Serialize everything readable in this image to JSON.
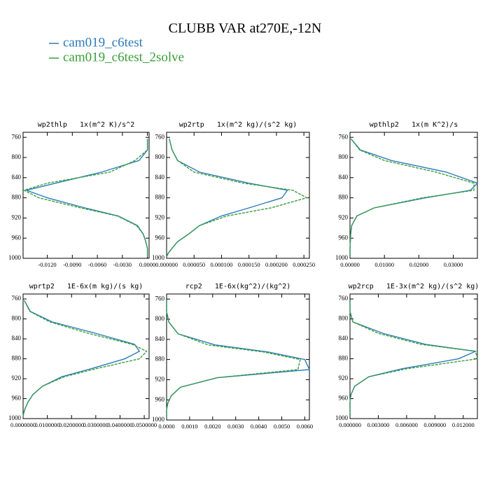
{
  "title": "CLUBB VAR at270E,-12N",
  "legend": [
    {
      "name": "cam019_c6test",
      "color": "#2b7bba"
    },
    {
      "name": "cam019_c6test_2solve",
      "color": "#3a9e3a"
    }
  ],
  "chart_data": [
    {
      "type": "line",
      "title": "wp2thlp   1x(m^2 K)/s^2",
      "y": [
        763,
        785,
        806,
        829,
        851,
        865,
        880,
        900,
        916,
        935,
        952,
        967,
        980,
        990,
        997
      ],
      "ylim": [
        1000,
        750
      ],
      "yticks": [
        760,
        800,
        840,
        880,
        920,
        960,
        1000
      ],
      "xlim": [
        -0.0149,
        0.0002
      ],
      "xticks": [
        {
          "value": -0.012,
          "label": "-0.0120"
        },
        {
          "value": -0.009,
          "label": "-0.0090"
        },
        {
          "value": -0.006,
          "label": "-0.0060"
        },
        {
          "value": -0.003,
          "label": "-0.0030"
        },
        {
          "value": 0,
          "label": "0.0000"
        }
      ],
      "series": [
        {
          "color": "#2b7bba",
          "dashed": false,
          "values": [
            0,
            0,
            -0.001,
            -0.0055,
            -0.011,
            -0.0145,
            -0.012,
            -0.0075,
            -0.0035,
            -0.0012,
            -0.0005,
            -0.0002,
            0,
            0,
            0
          ]
        },
        {
          "color": "#3a9e3a",
          "dashed": true,
          "values": [
            0,
            0,
            -0.0015,
            -0.0045,
            -0.012,
            -0.0148,
            -0.013,
            -0.008,
            -0.0036,
            -0.0013,
            -0.0005,
            -0.0002,
            0,
            0,
            0
          ]
        }
      ]
    },
    {
      "type": "line",
      "title": "wp2rtp   1x(m^2 kg)/(s^2 kg)",
      "y": [
        763,
        785,
        806,
        829,
        851,
        865,
        880,
        900,
        916,
        935,
        952,
        967,
        980,
        990,
        997
      ],
      "ylim": [
        1000,
        750
      ],
      "yticks": [
        760,
        800,
        840,
        880,
        920,
        960,
        1000
      ],
      "xlim": [
        0,
        0.00026
      ],
      "xticks": [
        {
          "value": 0,
          "label": "0.000000"
        },
        {
          "value": 5e-05,
          "label": "0.000050"
        },
        {
          "value": 0.0001,
          "label": "0.000100"
        },
        {
          "value": 0.00015,
          "label": "0.000150"
        },
        {
          "value": 0.0002,
          "label": "0.000200"
        },
        {
          "value": 0.00025,
          "label": "0.000250"
        }
      ],
      "series": [
        {
          "color": "#2b7bba",
          "dashed": false,
          "values": [
            5e-06,
            1e-05,
            2e-05,
            6e-05,
            0.00015,
            0.00022,
            0.00021,
            0.00015,
            0.0001,
            6e-05,
            4e-05,
            2e-05,
            1e-05,
            3e-06,
            0
          ]
        },
        {
          "color": "#3a9e3a",
          "dashed": true,
          "values": [
            5e-06,
            1e-05,
            2e-05,
            5e-05,
            0.00014,
            0.00023,
            0.000255,
            0.00019,
            0.00011,
            6e-05,
            4e-05,
            2e-05,
            1e-05,
            3e-06,
            0
          ]
        }
      ]
    },
    {
      "type": "line",
      "title": "wpthlp2   1x(m K^2)/s",
      "y": [
        763,
        785,
        806,
        829,
        851,
        865,
        880,
        900,
        916,
        935,
        952,
        967,
        980,
        990,
        997
      ],
      "ylim": [
        1000,
        750
      ],
      "yticks": [
        760,
        800,
        840,
        880,
        920,
        960,
        1000
      ],
      "xlim": [
        0,
        0.037
      ],
      "xticks": [
        {
          "value": 0,
          "label": "0.00000"
        },
        {
          "value": 0.01,
          "label": "0.01000"
        },
        {
          "value": 0.02,
          "label": "0.02000"
        },
        {
          "value": 0.03,
          "label": "0.03000"
        }
      ],
      "series": [
        {
          "color": "#2b7bba",
          "dashed": false,
          "values": [
            0.0003,
            0.003,
            0.012,
            0.028,
            0.037,
            0.035,
            0.022,
            0.007,
            0.002,
            0.0005,
            0.0002,
            0.0001,
            0,
            0,
            0
          ]
        },
        {
          "color": "#3a9e3a",
          "dashed": true,
          "values": [
            0.0003,
            0.0028,
            0.01,
            0.025,
            0.036,
            0.036,
            0.021,
            0.007,
            0.002,
            0.0005,
            0.0002,
            0.0001,
            0,
            0,
            0
          ]
        }
      ]
    },
    {
      "type": "line",
      "title": "wprtp2   1E-6x(m kg)/(s kg)",
      "y": [
        763,
        785,
        806,
        829,
        851,
        865,
        880,
        900,
        916,
        935,
        952,
        967,
        980,
        990,
        997
      ],
      "ylim": [
        1000,
        750
      ],
      "yticks": [
        760,
        800,
        840,
        880,
        920,
        960,
        1000
      ],
      "xlim": [
        0,
        0.052
      ],
      "xticks": [
        {
          "value": 0,
          "label": "0.0000000"
        },
        {
          "value": 0.01,
          "label": "0.0100000"
        },
        {
          "value": 0.02,
          "label": "0.0200000"
        },
        {
          "value": 0.03,
          "label": "0.0300000"
        },
        {
          "value": 0.04,
          "label": "0.0400000"
        },
        {
          "value": 0.05,
          "label": "0.0500000"
        }
      ],
      "series": [
        {
          "color": "#2b7bba",
          "dashed": false,
          "values": [
            0.0005,
            0.003,
            0.012,
            0.03,
            0.046,
            0.048,
            0.042,
            0.028,
            0.016,
            0.008,
            0.004,
            0.002,
            0.0008,
            0.0002,
            0
          ]
        },
        {
          "color": "#3a9e3a",
          "dashed": true,
          "values": [
            0.0005,
            0.0028,
            0.011,
            0.027,
            0.045,
            0.051,
            0.048,
            0.03,
            0.017,
            0.008,
            0.004,
            0.002,
            0.0008,
            0.0002,
            0
          ]
        }
      ]
    },
    {
      "type": "line",
      "title": "rcp2   1E-6x(kg^2)/(kg^2)",
      "y": [
        763,
        785,
        806,
        829,
        851,
        865,
        880,
        900,
        916,
        935,
        952,
        967,
        980,
        990,
        997
      ],
      "ylim": [
        1000,
        750
      ],
      "yticks": [
        760,
        800,
        840,
        880,
        920,
        960,
        1000
      ],
      "xlim": [
        0,
        0.0062
      ],
      "xticks": [
        {
          "value": 0,
          "label": "0.0000"
        },
        {
          "value": 0.001,
          "label": "0.0010"
        },
        {
          "value": 0.002,
          "label": "0.0020"
        },
        {
          "value": 0.003,
          "label": "0.0030"
        },
        {
          "value": 0.004,
          "label": "0.0040"
        },
        {
          "value": 0.005,
          "label": "0.0050"
        },
        {
          "value": 0.006,
          "label": "0.0060"
        }
      ],
      "series": [
        {
          "color": "#2b7bba",
          "dashed": false,
          "values": [
            0,
            0,
            0.0001,
            0.0005,
            0.0021,
            0.0044,
            0.006,
            0.0062,
            0.0022,
            0.0006,
            0.0002,
            5e-05,
            0,
            0,
            0
          ]
        },
        {
          "color": "#3a9e3a",
          "dashed": true,
          "values": [
            0,
            0,
            0.0001,
            0.0005,
            0.0018,
            0.0042,
            0.0058,
            0.0057,
            0.0022,
            0.0006,
            0.0002,
            5e-05,
            0,
            0,
            0
          ]
        }
      ]
    },
    {
      "type": "line",
      "title": "wp2rcp   1E-3x(m^2 kg)/(s^2 kg)",
      "y": [
        763,
        785,
        806,
        829,
        851,
        865,
        880,
        900,
        916,
        935,
        952,
        967,
        980,
        990,
        997
      ],
      "ylim": [
        1000,
        750
      ],
      "yticks": [
        760,
        800,
        840,
        880,
        920,
        960,
        1000
      ],
      "xlim": [
        0,
        0.0135
      ],
      "xticks": [
        {
          "value": 0,
          "label": "0.000000"
        },
        {
          "value": 0.003,
          "label": "0.003000"
        },
        {
          "value": 0.006,
          "label": "0.006000"
        },
        {
          "value": 0.009,
          "label": "0.009000"
        },
        {
          "value": 0.012,
          "label": "0.012000"
        }
      ],
      "series": [
        {
          "color": "#2b7bba",
          "dashed": false,
          "values": [
            0,
            0,
            0.0003,
            0.0035,
            0.008,
            0.0133,
            0.0115,
            0.0055,
            0.002,
            0.0005,
            0.0001,
            0,
            0,
            0,
            0
          ]
        },
        {
          "color": "#3a9e3a",
          "dashed": true,
          "values": [
            0,
            0,
            0.0003,
            0.003,
            0.0075,
            0.0133,
            0.0135,
            0.006,
            0.002,
            0.0005,
            0.0001,
            0,
            0,
            0,
            0
          ]
        }
      ]
    }
  ]
}
